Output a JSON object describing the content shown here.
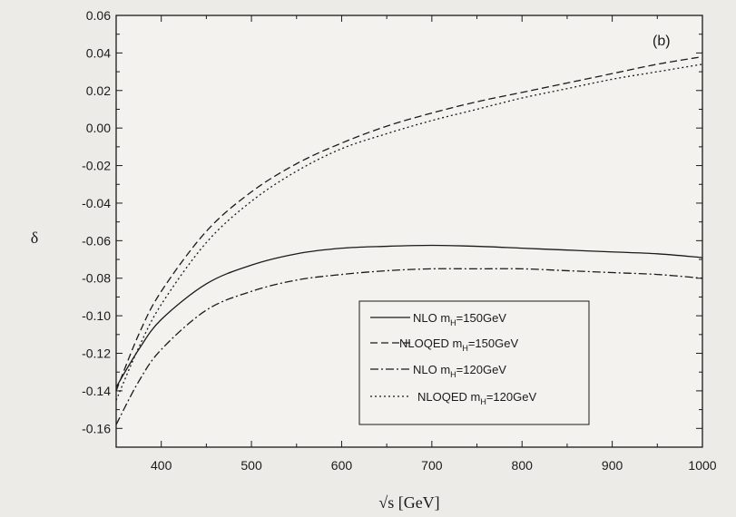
{
  "chart_data": {
    "type": "line",
    "panel_label": "(b)",
    "xlabel": "√s [GeV]",
    "ylabel": "δ",
    "xlim": [
      350,
      1000
    ],
    "ylim": [
      -0.17,
      0.06
    ],
    "xticks": [
      400,
      500,
      600,
      700,
      800,
      900,
      1000
    ],
    "yticks": [
      -0.16,
      -0.14,
      -0.12,
      -0.1,
      -0.08,
      -0.06,
      -0.04,
      -0.02,
      0.0,
      0.02,
      0.04,
      0.06
    ],
    "ytick_labels": [
      "-0.16",
      "-0.14",
      "-0.12",
      "-0.10",
      "-0.08",
      "-0.06",
      "-0.04",
      "-0.02",
      "0.00",
      "0.02",
      "0.04",
      "0.06"
    ],
    "grid": false,
    "legend_position": "bottom-right",
    "x": [
      350,
      375,
      400,
      450,
      500,
      550,
      600,
      650,
      700,
      750,
      800,
      850,
      900,
      950,
      1000
    ],
    "series": [
      {
        "label_main": "NLO m",
        "label_sub": "H",
        "label_rest": "=150GeV",
        "style": "solid",
        "values": [
          -0.138,
          -0.118,
          -0.102,
          -0.083,
          -0.073,
          -0.067,
          -0.064,
          -0.063,
          -0.0625,
          -0.063,
          -0.064,
          -0.065,
          -0.066,
          -0.067,
          -0.069
        ]
      },
      {
        "label_main": "NLOQED m",
        "label_sub": "H",
        "label_rest": "=150GeV",
        "style": "dashed",
        "values": [
          -0.14,
          -0.11,
          -0.087,
          -0.055,
          -0.034,
          -0.019,
          -0.008,
          0.001,
          0.008,
          0.014,
          0.019,
          0.024,
          0.029,
          0.034,
          0.038
        ]
      },
      {
        "label_main": "NLO m",
        "label_sub": "H",
        "label_rest": "=120GeV",
        "style": "dashdot",
        "values": [
          -0.158,
          -0.135,
          -0.118,
          -0.097,
          -0.087,
          -0.081,
          -0.078,
          -0.076,
          -0.075,
          -0.075,
          -0.075,
          -0.076,
          -0.077,
          -0.078,
          -0.08
        ]
      },
      {
        "label_main": "NLOQED m",
        "label_sub": "H",
        "label_rest": "=120GeV",
        "style": "dotted",
        "values": [
          -0.145,
          -0.117,
          -0.094,
          -0.061,
          -0.039,
          -0.023,
          -0.011,
          -0.003,
          0.004,
          0.01,
          0.016,
          0.021,
          0.026,
          0.03,
          0.034
        ]
      }
    ]
  }
}
